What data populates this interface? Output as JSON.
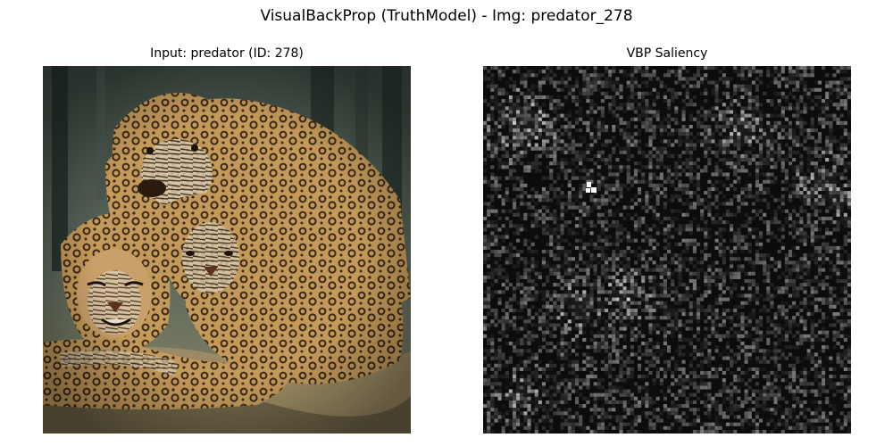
{
  "figure": {
    "title": "VisualBackProp (TruthModel) - Img: predator_278"
  },
  "panels": {
    "input": {
      "title": "Input: predator (ID: 278)",
      "content": "photo of a group of jaguars / leopards resting together"
    },
    "saliency": {
      "title": "VBP Saliency",
      "content": "grayscale VisualBackProp saliency map, mostly dark with sparse bright pixels"
    }
  },
  "colors": {
    "saliency_background": "#0c0c0c",
    "saliency_hotspot": "#ffffff"
  }
}
